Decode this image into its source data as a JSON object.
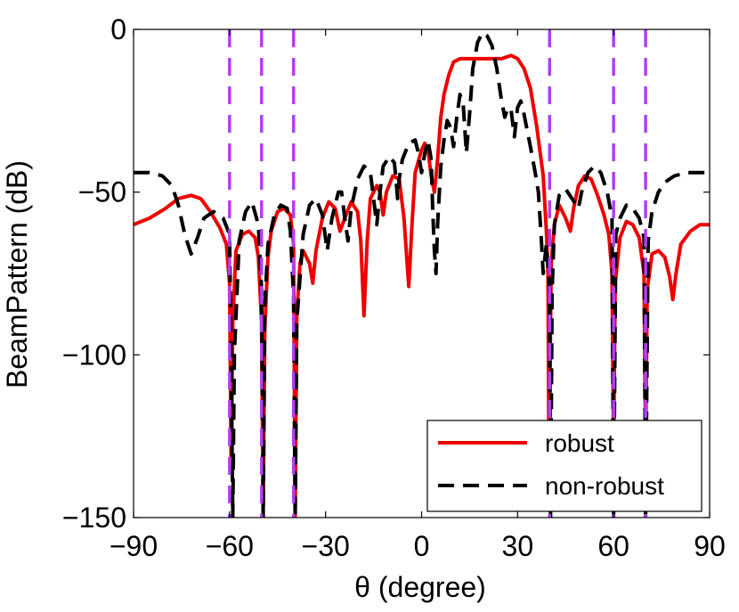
{
  "chart_data": {
    "type": "line",
    "title": "",
    "xlabel": "θ (degree)",
    "ylabel": "BeamPattern (dB)",
    "xlim": [
      -90,
      90
    ],
    "ylim": [
      -150,
      0
    ],
    "xticks": [
      -90,
      -60,
      -30,
      0,
      30,
      60,
      90
    ],
    "yticks": [
      0,
      -50,
      -100,
      -150
    ],
    "xtick_labels": [
      "−90",
      "−60",
      "−30",
      "0",
      "30",
      "60",
      "90"
    ],
    "ytick_labels": [
      "0",
      "−50",
      "−100",
      "−150"
    ],
    "grid": false,
    "legend_position": "bottom-right",
    "null_lines": {
      "color": "#b040f0",
      "style": "dashed",
      "x": [
        -60,
        -50,
        -40,
        40,
        60,
        70
      ]
    },
    "series": [
      {
        "name": "robust",
        "color": "#ee0000",
        "style": "solid",
        "points": [
          [
            -90,
            -60
          ],
          [
            -85,
            -58
          ],
          [
            -80,
            -55
          ],
          [
            -76,
            -52
          ],
          [
            -72,
            -51
          ],
          [
            -69,
            -52
          ],
          [
            -66,
            -56
          ],
          [
            -63,
            -61
          ],
          [
            -61,
            -66
          ],
          [
            -60,
            -78
          ],
          [
            -59.5,
            -135
          ],
          [
            -59,
            -90
          ],
          [
            -58,
            -68
          ],
          [
            -56,
            -63
          ],
          [
            -54,
            -62
          ],
          [
            -52,
            -64
          ],
          [
            -51,
            -70
          ],
          [
            -50,
            -90
          ],
          [
            -49.5,
            -150
          ],
          [
            -49,
            -92
          ],
          [
            -48,
            -70
          ],
          [
            -47,
            -62
          ],
          [
            -45,
            -56
          ],
          [
            -43,
            -55
          ],
          [
            -41,
            -57
          ],
          [
            -40,
            -66
          ],
          [
            -39.5,
            -150
          ],
          [
            -39,
            -88
          ],
          [
            -38,
            -72
          ],
          [
            -37,
            -68
          ],
          [
            -35,
            -72
          ],
          [
            -34,
            -78
          ],
          [
            -33,
            -68
          ],
          [
            -31,
            -58
          ],
          [
            -29,
            -53
          ],
          [
            -27,
            -55
          ],
          [
            -25.5,
            -62
          ],
          [
            -24,
            -58
          ],
          [
            -22,
            -53
          ],
          [
            -20,
            -56
          ],
          [
            -19,
            -65
          ],
          [
            -18,
            -88
          ],
          [
            -17,
            -65
          ],
          [
            -16,
            -52
          ],
          [
            -14,
            -48
          ],
          [
            -13,
            -50
          ],
          [
            -12,
            -57
          ],
          [
            -11,
            -50
          ],
          [
            -9,
            -45
          ],
          [
            -7,
            -46
          ],
          [
            -5.5,
            -58
          ],
          [
            -4,
            -79
          ],
          [
            -3,
            -60
          ],
          [
            -2,
            -44
          ],
          [
            0,
            -37
          ],
          [
            1,
            -35
          ],
          [
            2,
            -37
          ],
          [
            3,
            -45
          ],
          [
            4,
            -50
          ],
          [
            5,
            -40
          ],
          [
            6,
            -27
          ],
          [
            7,
            -20
          ],
          [
            8.5,
            -14
          ],
          [
            10,
            -10
          ],
          [
            12,
            -9
          ],
          [
            15,
            -9
          ],
          [
            20,
            -9
          ],
          [
            25,
            -9
          ],
          [
            28,
            -8
          ],
          [
            30,
            -9
          ],
          [
            32,
            -12
          ],
          [
            34,
            -18
          ],
          [
            36,
            -30
          ],
          [
            38,
            -45
          ],
          [
            39,
            -62
          ],
          [
            39.5,
            -75
          ],
          [
            39.8,
            -135
          ],
          [
            40.5,
            -72
          ],
          [
            41.5,
            -60
          ],
          [
            43,
            -54
          ],
          [
            45,
            -58
          ],
          [
            46.5,
            -62
          ],
          [
            47.5,
            -55
          ],
          [
            49,
            -48
          ],
          [
            51,
            -45
          ],
          [
            53,
            -46
          ],
          [
            55,
            -51
          ],
          [
            57,
            -57
          ],
          [
            58.5,
            -63
          ],
          [
            59.5,
            -75
          ],
          [
            60,
            -130
          ],
          [
            60.5,
            -78
          ],
          [
            62,
            -64
          ],
          [
            64,
            -59
          ],
          [
            66,
            -60
          ],
          [
            68,
            -64
          ],
          [
            69.5,
            -75
          ],
          [
            70,
            -130
          ],
          [
            70.5,
            -80
          ],
          [
            72,
            -69
          ],
          [
            74,
            -68
          ],
          [
            76,
            -70
          ],
          [
            77.5,
            -76
          ],
          [
            78.5,
            -83
          ],
          [
            79.5,
            -75
          ],
          [
            81,
            -66
          ],
          [
            84,
            -62
          ],
          [
            87,
            -60
          ],
          [
            90,
            -60
          ]
        ]
      },
      {
        "name": "non-robust",
        "color": "#000000",
        "style": "dashed",
        "points": [
          [
            -90,
            -44
          ],
          [
            -85,
            -44
          ],
          [
            -81,
            -45
          ],
          [
            -78,
            -48
          ],
          [
            -76,
            -54
          ],
          [
            -74,
            -63
          ],
          [
            -72,
            -69
          ],
          [
            -70,
            -64
          ],
          [
            -68,
            -58
          ],
          [
            -65,
            -56
          ],
          [
            -62,
            -58
          ],
          [
            -60,
            -63
          ],
          [
            -59.5,
            -100
          ],
          [
            -59,
            -150
          ],
          [
            -58.5,
            -100
          ],
          [
            -57,
            -65
          ],
          [
            -55,
            -56
          ],
          [
            -53,
            -53
          ],
          [
            -51,
            -60
          ],
          [
            -50,
            -80
          ],
          [
            -49.5,
            -150
          ],
          [
            -49,
            -85
          ],
          [
            -48,
            -66
          ],
          [
            -46,
            -57
          ],
          [
            -44,
            -54
          ],
          [
            -42,
            -55
          ],
          [
            -41,
            -62
          ],
          [
            -40,
            -82
          ],
          [
            -39.5,
            -150
          ],
          [
            -39,
            -90
          ],
          [
            -37,
            -63
          ],
          [
            -35,
            -54
          ],
          [
            -33,
            -52
          ],
          [
            -31,
            -57
          ],
          [
            -29.5,
            -68
          ],
          [
            -28,
            -58
          ],
          [
            -26,
            -50
          ],
          [
            -25,
            -50
          ],
          [
            -24,
            -58
          ],
          [
            -23,
            -65
          ],
          [
            -22,
            -55
          ],
          [
            -20,
            -46
          ],
          [
            -18,
            -42
          ],
          [
            -16,
            -44
          ],
          [
            -15,
            -52
          ],
          [
            -14,
            -60
          ],
          [
            -13,
            -50
          ],
          [
            -12,
            -42
          ],
          [
            -10,
            -39
          ],
          [
            -8.5,
            -41
          ],
          [
            -8,
            -46
          ],
          [
            -7.5,
            -52
          ],
          [
            -7,
            -46
          ],
          [
            -6,
            -40
          ],
          [
            -4,
            -35
          ],
          [
            -2,
            -34
          ],
          [
            -1,
            -38
          ],
          [
            0,
            -44
          ],
          [
            1,
            -38
          ],
          [
            2,
            -34
          ],
          [
            3,
            -40
          ],
          [
            3.5,
            -56
          ],
          [
            4,
            -68
          ],
          [
            4.5,
            -75
          ],
          [
            5,
            -60
          ],
          [
            6,
            -42
          ],
          [
            7,
            -34
          ],
          [
            8,
            -28
          ],
          [
            9,
            -30
          ],
          [
            10,
            -36
          ],
          [
            11,
            -27
          ],
          [
            12,
            -20
          ],
          [
            13,
            -23
          ],
          [
            14,
            -38
          ],
          [
            15,
            -26
          ],
          [
            16,
            -12
          ],
          [
            17.5,
            -4
          ],
          [
            19,
            -1
          ],
          [
            20.5,
            -2
          ],
          [
            22,
            -5
          ],
          [
            23.5,
            -12
          ],
          [
            25,
            -22
          ],
          [
            26,
            -27
          ],
          [
            27,
            -24
          ],
          [
            28,
            -25
          ],
          [
            29,
            -33
          ],
          [
            30,
            -24
          ],
          [
            31,
            -22
          ],
          [
            32,
            -26
          ],
          [
            34,
            -36
          ],
          [
            35.5,
            -44
          ],
          [
            36.5,
            -50
          ],
          [
            37.5,
            -66
          ],
          [
            38,
            -75
          ],
          [
            39,
            -66
          ],
          [
            40,
            -80
          ],
          [
            40.3,
            -150
          ],
          [
            40.8,
            -80
          ],
          [
            41.5,
            -60
          ],
          [
            43,
            -51
          ],
          [
            45,
            -49
          ],
          [
            47,
            -52
          ],
          [
            49,
            -55
          ],
          [
            50,
            -50
          ],
          [
            52,
            -44
          ],
          [
            54,
            -42
          ],
          [
            56,
            -44
          ],
          [
            58,
            -50
          ],
          [
            59.5,
            -58
          ],
          [
            60,
            -150
          ],
          [
            60.7,
            -63
          ],
          [
            62,
            -58
          ],
          [
            64,
            -54
          ],
          [
            66,
            -55
          ],
          [
            68,
            -58
          ],
          [
            69.5,
            -64
          ],
          [
            70,
            -150
          ],
          [
            70.8,
            -65
          ],
          [
            72,
            -56
          ],
          [
            74,
            -50
          ],
          [
            76,
            -47
          ],
          [
            79,
            -45
          ],
          [
            83,
            -44
          ],
          [
            87,
            -44
          ],
          [
            90,
            -44
          ]
        ]
      }
    ]
  }
}
